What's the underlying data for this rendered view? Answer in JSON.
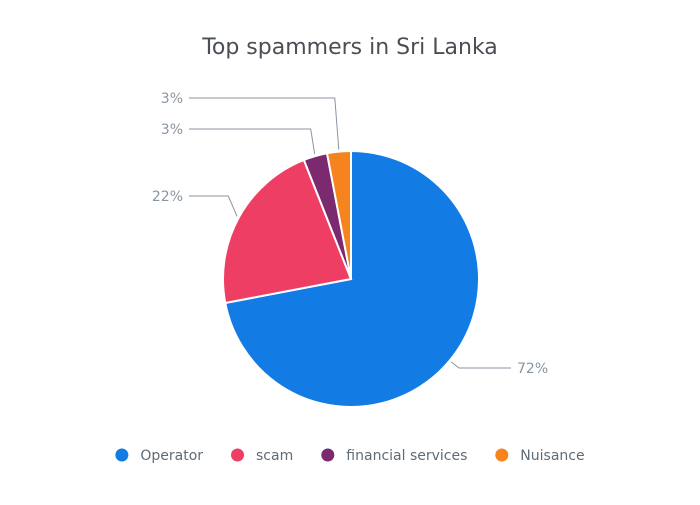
{
  "chart_data": {
    "type": "pie",
    "title": "Top spammers in Sri Lanka",
    "categories": [
      "Operator",
      "scam",
      "financial services",
      "Nuisance"
    ],
    "values": [
      72,
      22,
      3,
      3
    ],
    "value_labels": [
      "72%",
      "22%",
      "3%",
      "3%"
    ],
    "colors": [
      "#127be4",
      "#ef3e63",
      "#7b2a6f",
      "#f5841f"
    ],
    "start_angle_deg": 0,
    "direction": "clockwise",
    "legend_position": "bottom"
  }
}
